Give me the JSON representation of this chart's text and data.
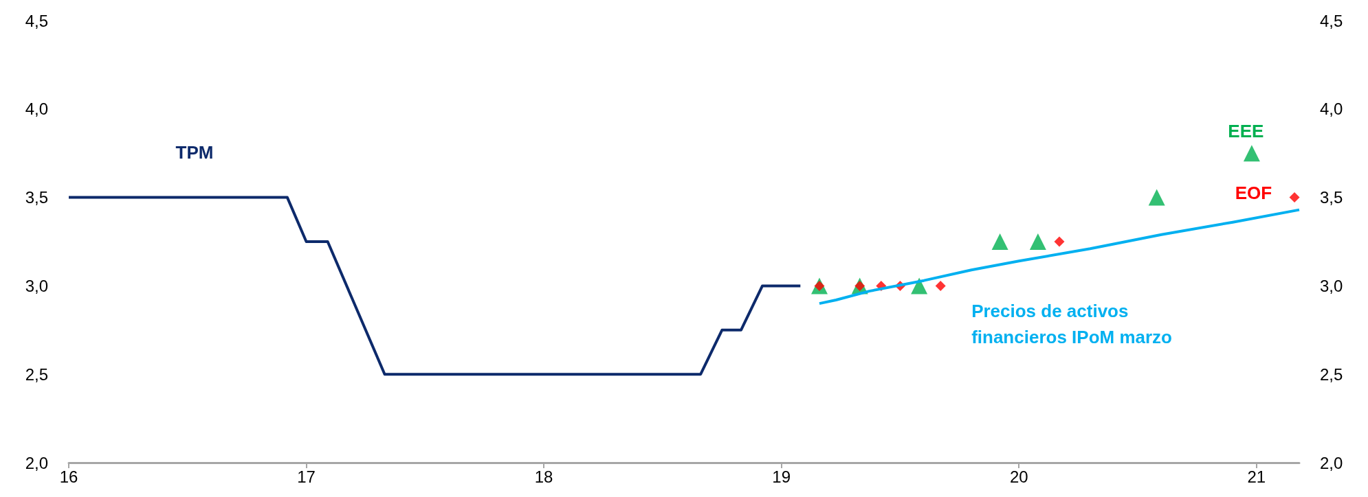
{
  "chart_data": {
    "type": "line",
    "xlim": [
      16,
      21.18
    ],
    "xticks": [
      16,
      17,
      18,
      19,
      20,
      21
    ],
    "ylim": [
      2,
      4.5
    ],
    "yticks": [
      {
        "value": 2,
        "label": "2,0"
      },
      {
        "value": 2.5,
        "label": "2,5"
      },
      {
        "value": 3,
        "label": "3,0"
      },
      {
        "value": 3.5,
        "label": "3,5"
      },
      {
        "value": 4,
        "label": "4,0"
      },
      {
        "value": 4.5,
        "label": "4,5"
      }
    ],
    "y2lim": [
      2,
      4.5
    ],
    "y2ticks": [
      {
        "value": 2,
        "label": "2,0"
      },
      {
        "value": 2.5,
        "label": "2,5"
      },
      {
        "value": 3,
        "label": "3,0"
      },
      {
        "value": 3.5,
        "label": "3,5"
      },
      {
        "value": 4,
        "label": "4,0"
      },
      {
        "value": 4.5,
        "label": "4,5"
      }
    ],
    "grid": false,
    "legend": false,
    "series": [
      {
        "name": "TPM",
        "marker": "none",
        "color": "#0d2a6b",
        "x": [
          16,
          16.92,
          17.0,
          17.09,
          17.33,
          18.66,
          18.75,
          18.83,
          18.92,
          19.08
        ],
        "values": [
          3.5,
          3.5,
          3.25,
          3.25,
          2.5,
          2.5,
          2.75,
          2.75,
          3.0,
          3.0
        ]
      },
      {
        "name": "Precios de activos financieros IPoM marzo",
        "marker": "none",
        "color": "#00b0f0",
        "x": [
          19.16,
          19.23,
          19.37,
          19.6,
          19.8,
          20.0,
          20.3,
          20.6,
          20.9,
          21.18
        ],
        "values": [
          2.9,
          2.92,
          2.97,
          3.03,
          3.09,
          3.14,
          3.21,
          3.29,
          3.36,
          3.43
        ]
      },
      {
        "name": "EEE",
        "type": "scatter",
        "marker": "triangle",
        "color": "#00b050",
        "x": [
          19.16,
          19.33,
          19.58,
          19.92,
          20.08,
          20.58,
          20.98
        ],
        "values": [
          3.0,
          3.0,
          3.0,
          3.25,
          3.25,
          3.5,
          3.75
        ]
      },
      {
        "name": "EOF",
        "type": "scatter",
        "marker": "diamond",
        "color": "#ff0000",
        "x": [
          19.16,
          19.33,
          19.42,
          19.5,
          19.67,
          20.17,
          21.16
        ],
        "values": [
          3.0,
          3.0,
          3.0,
          3.0,
          3.0,
          3.25,
          3.5
        ]
      }
    ]
  }
}
